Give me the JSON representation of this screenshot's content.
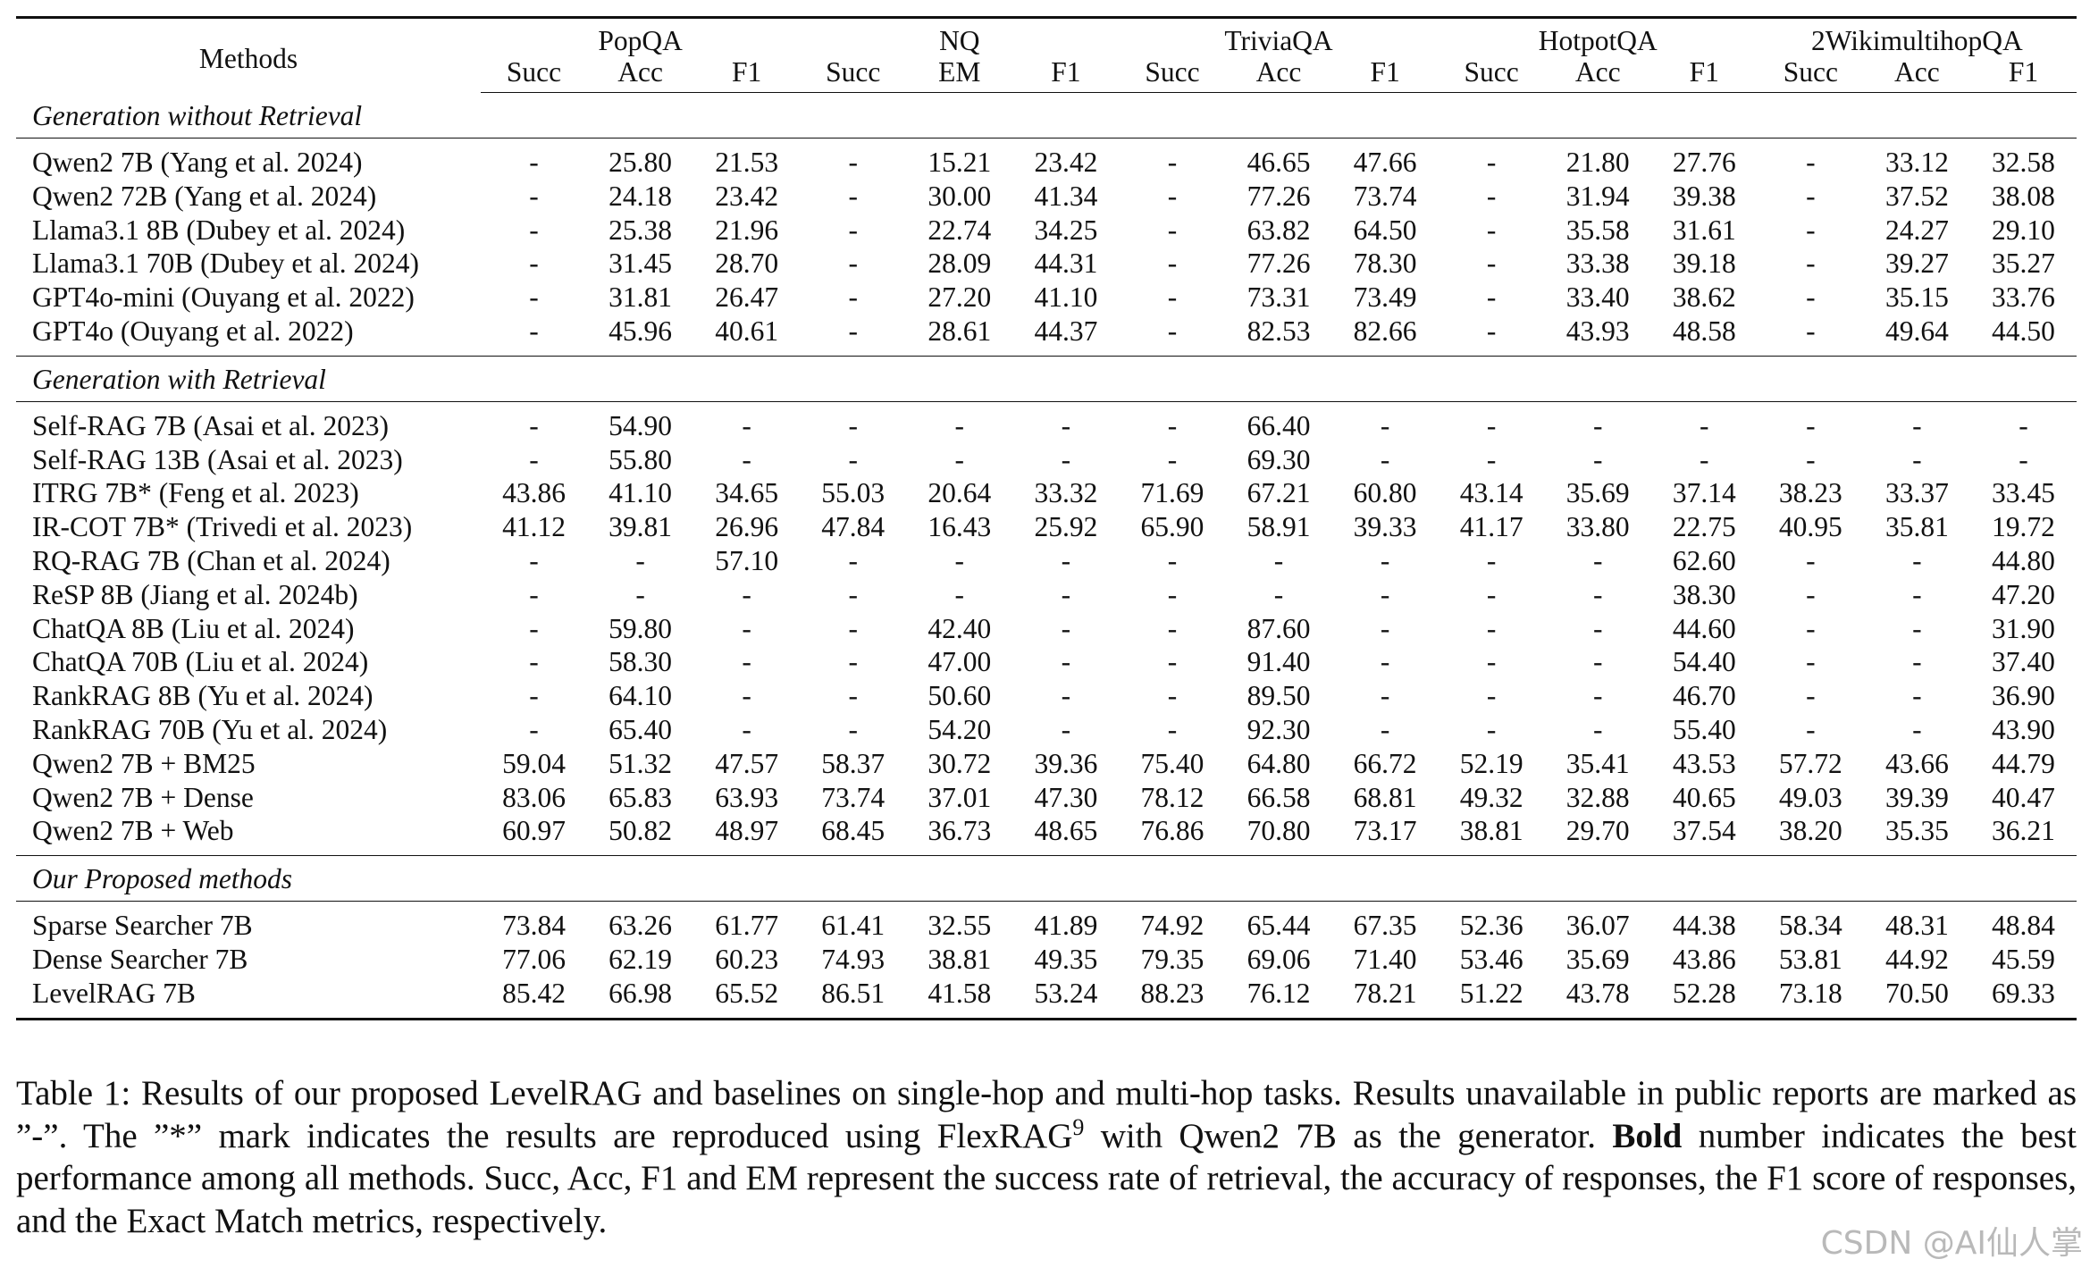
{
  "table": {
    "method_header": "Methods",
    "datasets": [
      {
        "name": "PopQA",
        "metrics": [
          "Succ",
          "Acc",
          "F1"
        ]
      },
      {
        "name": "NQ",
        "metrics": [
          "Succ",
          "EM",
          "F1"
        ]
      },
      {
        "name": "TriviaQA",
        "metrics": [
          "Succ",
          "Acc",
          "F1"
        ]
      },
      {
        "name": "HotpotQA",
        "metrics": [
          "Succ",
          "Acc",
          "F1"
        ]
      },
      {
        "name": "2WikimultihopQA",
        "metrics": [
          "Succ",
          "Acc",
          "F1"
        ]
      }
    ],
    "sections": [
      {
        "title": "Generation without Retrieval",
        "rows": [
          {
            "method": "Qwen2 7B (Yang et al. 2024)",
            "values": [
              "-",
              "25.80",
              "21.53",
              "-",
              "15.21",
              "23.42",
              "-",
              "46.65",
              "47.66",
              "-",
              "21.80",
              "27.76",
              "-",
              "33.12",
              "32.58"
            ],
            "bold": []
          },
          {
            "method": "Qwen2 72B (Yang et al. 2024)",
            "values": [
              "-",
              "24.18",
              "23.42",
              "-",
              "30.00",
              "41.34",
              "-",
              "77.26",
              "73.74",
              "-",
              "31.94",
              "39.38",
              "-",
              "37.52",
              "38.08"
            ],
            "bold": []
          },
          {
            "method": "Llama3.1 8B (Dubey et al. 2024)",
            "values": [
              "-",
              "25.38",
              "21.96",
              "-",
              "22.74",
              "34.25",
              "-",
              "63.82",
              "64.50",
              "-",
              "35.58",
              "31.61",
              "-",
              "24.27",
              "29.10"
            ],
            "bold": []
          },
          {
            "method": "Llama3.1 70B (Dubey et al. 2024)",
            "values": [
              "-",
              "31.45",
              "28.70",
              "-",
              "28.09",
              "44.31",
              "-",
              "77.26",
              "78.30",
              "-",
              "33.38",
              "39.18",
              "-",
              "39.27",
              "35.27"
            ],
            "bold": []
          },
          {
            "method": "GPT4o-mini (Ouyang et al. 2022)",
            "values": [
              "-",
              "31.81",
              "26.47",
              "-",
              "27.20",
              "41.10",
              "-",
              "73.31",
              "73.49",
              "-",
              "33.40",
              "38.62",
              "-",
              "35.15",
              "33.76"
            ],
            "bold": []
          },
          {
            "method": "GPT4o (Ouyang et al. 2022)",
            "values": [
              "-",
              "45.96",
              "40.61",
              "-",
              "28.61",
              "44.37",
              "-",
              "82.53",
              "82.66",
              "-",
              "43.93",
              "48.58",
              "-",
              "49.64",
              "44.50"
            ],
            "bold": [
              8,
              10
            ]
          }
        ]
      },
      {
        "title": "Generation with Retrieval",
        "rows": [
          {
            "method": "Self-RAG 7B (Asai et al. 2023)",
            "values": [
              "-",
              "54.90",
              "-",
              "-",
              "-",
              "-",
              "-",
              "66.40",
              "-",
              "-",
              "-",
              "-",
              "-",
              "-",
              "-"
            ],
            "bold": []
          },
          {
            "method": "Self-RAG 13B (Asai et al. 2023)",
            "values": [
              "-",
              "55.80",
              "-",
              "-",
              "-",
              "-",
              "-",
              "69.30",
              "-",
              "-",
              "-",
              "-",
              "-",
              "-",
              "-"
            ],
            "bold": []
          },
          {
            "method": "ITRG 7B* (Feng et al. 2023)",
            "values": [
              "43.86",
              "41.10",
              "34.65",
              "55.03",
              "20.64",
              "33.32",
              "71.69",
              "67.21",
              "60.80",
              "43.14",
              "35.69",
              "37.14",
              "38.23",
              "33.37",
              "33.45"
            ],
            "bold": []
          },
          {
            "method": "IR-COT 7B* (Trivedi et al. 2023)",
            "values": [
              "41.12",
              "39.81",
              "26.96",
              "47.84",
              "16.43",
              "25.92",
              "65.90",
              "58.91",
              "39.33",
              "41.17",
              "33.80",
              "22.75",
              "40.95",
              "35.81",
              "19.72"
            ],
            "bold": []
          },
          {
            "method": "RQ-RAG 7B (Chan et al. 2024)",
            "values": [
              "-",
              "-",
              "57.10",
              "-",
              "-",
              "-",
              "-",
              "-",
              "-",
              "-",
              "-",
              "62.60",
              "-",
              "-",
              "44.80"
            ],
            "bold": [
              11
            ]
          },
          {
            "method": "ReSP 8B (Jiang et al. 2024b)",
            "values": [
              "-",
              "-",
              "-",
              "-",
              "-",
              "-",
              "-",
              "-",
              "-",
              "-",
              "-",
              "38.30",
              "-",
              "-",
              "47.20"
            ],
            "bold": []
          },
          {
            "method": "ChatQA 8B (Liu et al. 2024)",
            "values": [
              "-",
              "59.80",
              "-",
              "-",
              "42.40",
              "-",
              "-",
              "87.60",
              "-",
              "-",
              "-",
              "44.60",
              "-",
              "-",
              "31.90"
            ],
            "bold": []
          },
          {
            "method": "ChatQA 70B (Liu et al. 2024)",
            "values": [
              "-",
              "58.30",
              "-",
              "-",
              "47.00",
              "-",
              "-",
              "91.40",
              "-",
              "-",
              "-",
              "54.40",
              "-",
              "-",
              "37.40"
            ],
            "bold": []
          },
          {
            "method": "RankRAG 8B (Yu et al. 2024)",
            "values": [
              "-",
              "64.10",
              "-",
              "-",
              "50.60",
              "-",
              "-",
              "89.50",
              "-",
              "-",
              "-",
              "46.70",
              "-",
              "-",
              "36.90"
            ],
            "bold": []
          },
          {
            "method": "RankRAG 70B (Yu et al. 2024)",
            "values": [
              "-",
              "65.40",
              "-",
              "-",
              "54.20",
              "-",
              "-",
              "92.30",
              "-",
              "-",
              "-",
              "55.40",
              "-",
              "-",
              "43.90"
            ],
            "bold": [
              4,
              7
            ]
          },
          {
            "method": "Qwen2 7B + BM25",
            "values": [
              "59.04",
              "51.32",
              "47.57",
              "58.37",
              "30.72",
              "39.36",
              "75.40",
              "64.80",
              "66.72",
              "52.19",
              "35.41",
              "43.53",
              "57.72",
              "43.66",
              "44.79"
            ],
            "bold": []
          },
          {
            "method": "Qwen2 7B + Dense",
            "values": [
              "83.06",
              "65.83",
              "63.93",
              "73.74",
              "37.01",
              "47.30",
              "78.12",
              "66.58",
              "68.81",
              "49.32",
              "32.88",
              "40.65",
              "49.03",
              "39.39",
              "40.47"
            ],
            "bold": []
          },
          {
            "method": "Qwen2 7B + Web",
            "values": [
              "60.97",
              "50.82",
              "48.97",
              "68.45",
              "36.73",
              "48.65",
              "76.86",
              "70.80",
              "73.17",
              "38.81",
              "29.70",
              "37.54",
              "38.20",
              "35.35",
              "36.21"
            ],
            "bold": []
          }
        ]
      },
      {
        "title": "Our Proposed methods",
        "rows": [
          {
            "method": "Sparse Searcher 7B",
            "values": [
              "73.84",
              "63.26",
              "61.77",
              "61.41",
              "32.55",
              "41.89",
              "74.92",
              "65.44",
              "67.35",
              "52.36",
              "36.07",
              "44.38",
              "58.34",
              "48.31",
              "48.84"
            ],
            "bold": []
          },
          {
            "method": "Dense Searcher 7B",
            "values": [
              "77.06",
              "62.19",
              "60.23",
              "74.93",
              "38.81",
              "49.35",
              "79.35",
              "69.06",
              "71.40",
              "53.46",
              "35.69",
              "43.86",
              "53.81",
              "44.92",
              "45.59"
            ],
            "bold": [
              9
            ]
          },
          {
            "method": "LevelRAG 7B",
            "values": [
              "85.42",
              "66.98",
              "65.52",
              "86.51",
              "41.58",
              "53.24",
              "88.23",
              "76.12",
              "78.21",
              "51.22",
              "43.78",
              "52.28",
              "73.18",
              "70.50",
              "69.33"
            ],
            "bold": [
              0,
              1,
              2,
              3,
              5,
              6,
              12,
              13,
              14
            ]
          }
        ]
      }
    ]
  },
  "caption": {
    "part1": "Table 1: Results of our proposed LevelRAG and baselines on single-hop and multi-hop tasks. Results unavailable in public reports are marked as ”-”. The ”*” mark indicates the results are reproduced using FlexRAG",
    "footnote": "9",
    "part2": " with Qwen2 7B as the generator. ",
    "bold_word": "Bold",
    "part3": " number indicates the best performance among all methods. Succ, Acc, F1 and EM represent the success rate of retrieval, the accuracy of responses, the F1 score of responses, and the Exact Match metrics, respectively."
  },
  "watermark": "CSDN @AI仙人掌"
}
